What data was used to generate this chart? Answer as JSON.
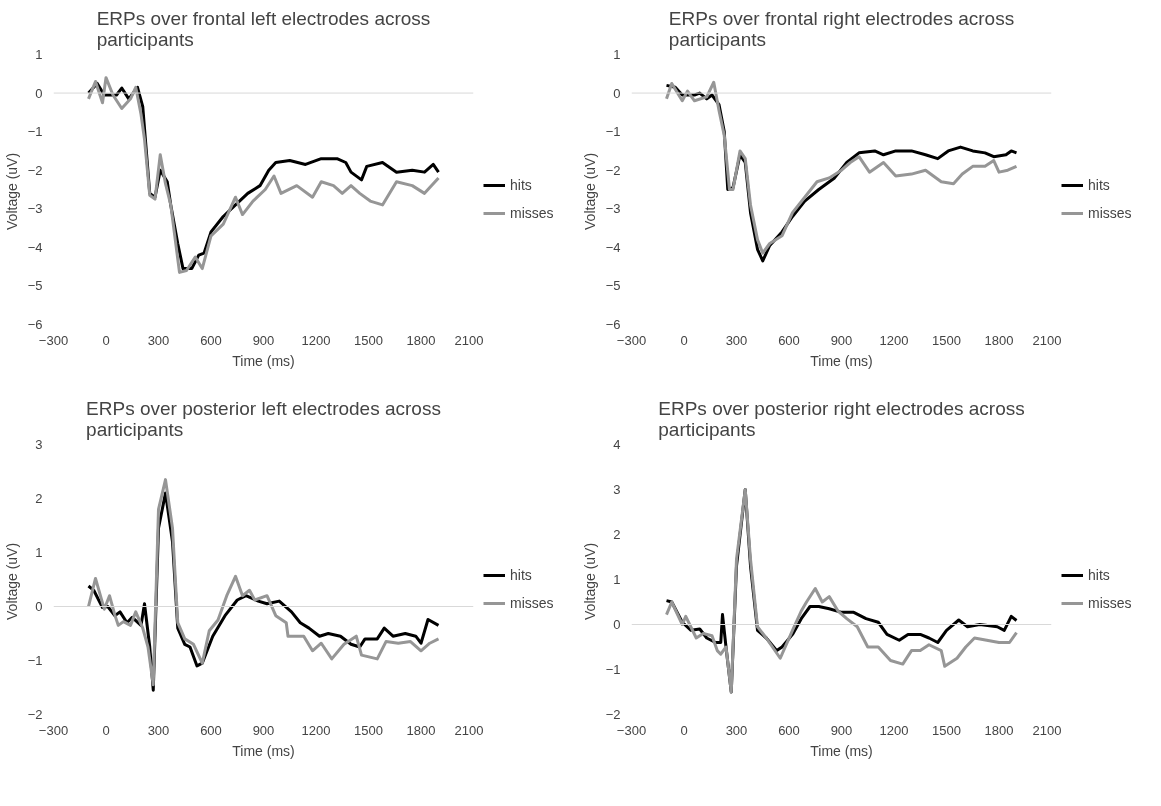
{
  "chart_data": [
    {
      "type": "line",
      "title": "ERPs over frontal left electrodes across participants",
      "xlabel": "Time (ms)",
      "ylabel": "Voltage  (uV)",
      "xlim": [
        -300,
        2100
      ],
      "xticks": [
        -300,
        0,
        300,
        600,
        900,
        1200,
        1500,
        1800,
        2100
      ],
      "ylim": [
        -6,
        1
      ],
      "yticks": [
        -6,
        -5,
        -4,
        -3,
        -2,
        -1,
        0,
        1
      ],
      "grid": false,
      "legend": "right",
      "ref_lines": [
        {
          "axis": "y",
          "value": 0,
          "color": "#d9d9d9"
        }
      ],
      "series": [
        {
          "name": "hits",
          "color": "#000000",
          "x": [
            -100,
            -50,
            -10,
            60,
            90,
            130,
            180,
            210,
            250,
            280,
            310,
            350,
            370,
            410,
            440,
            490,
            530,
            560,
            600,
            670,
            740,
            810,
            880,
            930,
            970,
            1050,
            1140,
            1230,
            1320,
            1370,
            1400,
            1460,
            1490,
            1580,
            1660,
            1750,
            1820,
            1870,
            1900
          ],
          "values": [
            0,
            0.25,
            -0.05,
            -0.05,
            0.13,
            -0.15,
            0.15,
            -0.35,
            -2.6,
            -2.7,
            -2.0,
            -2.3,
            -2.9,
            -3.9,
            -4.55,
            -4.55,
            -4.2,
            -4.15,
            -3.6,
            -3.2,
            -2.9,
            -2.6,
            -2.4,
            -2.0,
            -1.8,
            -1.75,
            -1.85,
            -1.7,
            -1.7,
            -1.8,
            -2.05,
            -2.25,
            -1.9,
            -1.8,
            -2.05,
            -2.0,
            -2.05,
            -1.85,
            -2.05
          ]
        },
        {
          "name": "misses",
          "color": "#969696",
          "x": [
            -100,
            -60,
            -20,
            0,
            40,
            90,
            140,
            170,
            200,
            220,
            250,
            280,
            310,
            340,
            370,
            420,
            460,
            510,
            550,
            600,
            670,
            740,
            780,
            840,
            910,
            960,
            1000,
            1090,
            1180,
            1230,
            1300,
            1350,
            1400,
            1450,
            1510,
            1580,
            1660,
            1750,
            1820,
            1900
          ],
          "values": [
            -0.15,
            0.3,
            -0.25,
            0.4,
            -0.05,
            -0.4,
            -0.15,
            0.15,
            -0.55,
            -1.2,
            -2.65,
            -2.75,
            -1.6,
            -2.35,
            -2.9,
            -4.65,
            -4.6,
            -4.25,
            -4.55,
            -3.7,
            -3.4,
            -2.7,
            -3.15,
            -2.8,
            -2.5,
            -2.15,
            -2.6,
            -2.4,
            -2.7,
            -2.3,
            -2.4,
            -2.6,
            -2.4,
            -2.6,
            -2.8,
            -2.9,
            -2.3,
            -2.4,
            -2.6,
            -2.2
          ]
        }
      ]
    },
    {
      "type": "line",
      "title": "ERPs over frontal right electrodes across participants",
      "xlabel": "Time (ms)",
      "ylabel": "Voltage  (uV)",
      "xlim": [
        -300,
        2100
      ],
      "xticks": [
        -300,
        0,
        300,
        600,
        900,
        1200,
        1500,
        1800,
        2100
      ],
      "ylim": [
        -6,
        1
      ],
      "yticks": [
        -6,
        -5,
        -4,
        -3,
        -2,
        -1,
        0,
        1
      ],
      "grid": false,
      "legend": "right",
      "ref_lines": [
        {
          "axis": "y",
          "value": 0,
          "color": "#d9d9d9"
        }
      ],
      "series": [
        {
          "name": "hits",
          "color": "#000000",
          "x": [
            -100,
            -50,
            -10,
            60,
            90,
            130,
            160,
            200,
            230,
            250,
            280,
            320,
            350,
            380,
            420,
            450,
            490,
            560,
            620,
            690,
            770,
            860,
            930,
            1000,
            1090,
            1140,
            1210,
            1300,
            1380,
            1450,
            1510,
            1580,
            1650,
            1720,
            1770,
            1840,
            1870,
            1900
          ],
          "values": [
            0.2,
            0.15,
            -0.05,
            -0.05,
            0,
            -0.15,
            -0.05,
            -0.3,
            -1.0,
            -2.5,
            -2.45,
            -1.6,
            -1.8,
            -3.1,
            -4.05,
            -4.35,
            -3.95,
            -3.6,
            -3.2,
            -2.8,
            -2.5,
            -2.2,
            -1.8,
            -1.55,
            -1.5,
            -1.6,
            -1.5,
            -1.5,
            -1.6,
            -1.7,
            -1.5,
            -1.4,
            -1.5,
            -1.55,
            -1.65,
            -1.6,
            -1.5,
            -1.55
          ]
        },
        {
          "name": "misses",
          "color": "#969696",
          "x": [
            -100,
            -70,
            -10,
            20,
            60,
            130,
            170,
            200,
            230,
            260,
            280,
            320,
            350,
            380,
            420,
            450,
            490,
            560,
            620,
            690,
            760,
            830,
            900,
            950,
            1000,
            1060,
            1140,
            1210,
            1300,
            1380,
            1470,
            1540,
            1590,
            1650,
            1720,
            1770,
            1800,
            1850,
            1900
          ],
          "values": [
            -0.15,
            0.25,
            -0.2,
            0.05,
            -0.2,
            -0.1,
            0.28,
            -0.45,
            -1.1,
            -2.5,
            -2.5,
            -1.5,
            -1.7,
            -2.9,
            -3.8,
            -4.15,
            -3.9,
            -3.7,
            -3.1,
            -2.7,
            -2.3,
            -2.2,
            -2.0,
            -1.8,
            -1.65,
            -2.05,
            -1.8,
            -2.15,
            -2.1,
            -2.0,
            -2.3,
            -2.35,
            -2.1,
            -1.9,
            -1.9,
            -1.75,
            -2.05,
            -2.0,
            -1.9
          ]
        }
      ]
    },
    {
      "type": "line",
      "title": "ERPs over posterior left electrodes across participants",
      "xlabel": "Time (ms)",
      "ylabel": "Voltage  (uV)",
      "xlim": [
        -300,
        2100
      ],
      "xticks": [
        -300,
        0,
        300,
        600,
        900,
        1200,
        1500,
        1800,
        2100
      ],
      "ylim": [
        -2,
        3
      ],
      "yticks": [
        -2,
        -1,
        0,
        1,
        2,
        3
      ],
      "grid": false,
      "legend": "right",
      "ref_lines": [
        {
          "axis": "y",
          "value": 0,
          "color": "#d9d9d9"
        }
      ],
      "series": [
        {
          "name": "hits",
          "color": "#000000",
          "x": [
            -100,
            -70,
            -20,
            10,
            50,
            80,
            120,
            150,
            200,
            220,
            250,
            270,
            300,
            340,
            380,
            410,
            450,
            480,
            520,
            550,
            610,
            680,
            750,
            800,
            870,
            920,
            990,
            1060,
            1110,
            1160,
            1220,
            1270,
            1340,
            1400,
            1450,
            1480,
            1550,
            1590,
            1640,
            1710,
            1770,
            1800,
            1840,
            1900
          ],
          "values": [
            0.38,
            0.3,
            -0.02,
            0,
            -0.17,
            -0.1,
            -0.3,
            -0.2,
            -0.35,
            0.05,
            -0.75,
            -1.55,
            1.45,
            2.1,
            1.2,
            -0.4,
            -0.7,
            -0.75,
            -1.1,
            -1.05,
            -0.55,
            -0.17,
            0.12,
            0.2,
            0.1,
            0.05,
            0.1,
            -0.1,
            -0.3,
            -0.4,
            -0.55,
            -0.5,
            -0.55,
            -0.7,
            -0.75,
            -0.6,
            -0.6,
            -0.4,
            -0.55,
            -0.5,
            -0.55,
            -0.68,
            -0.24,
            -0.35
          ]
        },
        {
          "name": "misses",
          "color": "#969696",
          "x": [
            -100,
            -60,
            -10,
            20,
            50,
            70,
            100,
            140,
            170,
            210,
            240,
            270,
            300,
            340,
            380,
            410,
            450,
            500,
            550,
            590,
            640,
            690,
            740,
            780,
            820,
            850,
            920,
            970,
            1030,
            1040,
            1130,
            1180,
            1230,
            1290,
            1360,
            1430,
            1460,
            1550,
            1600,
            1670,
            1740,
            1800,
            1850,
            1900
          ],
          "values": [
            0,
            0.52,
            -0.05,
            0.2,
            -0.15,
            -0.35,
            -0.28,
            -0.35,
            -0.1,
            -0.4,
            -0.75,
            -1.45,
            1.8,
            2.35,
            1.45,
            -0.3,
            -0.6,
            -0.7,
            -1.05,
            -0.45,
            -0.25,
            0.2,
            0.56,
            0.2,
            0.3,
            0.12,
            0.2,
            -0.17,
            -0.3,
            -0.55,
            -0.55,
            -0.82,
            -0.68,
            -0.97,
            -0.7,
            -0.55,
            -0.9,
            -0.97,
            -0.65,
            -0.68,
            -0.65,
            -0.82,
            -0.68,
            -0.6
          ]
        }
      ]
    },
    {
      "type": "line",
      "title": "ERPs over posterior right electrodes across participants",
      "xlabel": "Time (ms)",
      "ylabel": "Voltage  (uV)",
      "xlim": [
        -300,
        2100
      ],
      "xticks": [
        -300,
        0,
        300,
        600,
        900,
        1200,
        1500,
        1800,
        2100
      ],
      "ylim": [
        -2,
        4
      ],
      "yticks": [
        -2,
        -1,
        0,
        1,
        2,
        3,
        4
      ],
      "grid": false,
      "legend": "right",
      "ref_lines": [
        {
          "axis": "y",
          "value": 0,
          "color": "#d9d9d9"
        }
      ],
      "series": [
        {
          "name": "hits",
          "color": "#000000",
          "x": [
            -100,
            -70,
            -10,
            40,
            90,
            130,
            180,
            210,
            220,
            240,
            270,
            300,
            350,
            380,
            420,
            470,
            530,
            560,
            620,
            670,
            720,
            770,
            830,
            900,
            970,
            1040,
            1110,
            1160,
            1230,
            1280,
            1350,
            1400,
            1450,
            1500,
            1570,
            1620,
            1690,
            1790,
            1830,
            1870,
            1900
          ],
          "values": [
            0.53,
            0.5,
            0.05,
            -0.13,
            -0.1,
            -0.3,
            -0.4,
            -0.4,
            0.22,
            -0.5,
            -1.5,
            1.3,
            3.0,
            1.3,
            -0.13,
            -0.3,
            -0.58,
            -0.5,
            -0.22,
            0.13,
            0.4,
            0.4,
            0.35,
            0.27,
            0.27,
            0.13,
            0.05,
            -0.22,
            -0.35,
            -0.22,
            -0.22,
            -0.3,
            -0.4,
            -0.13,
            0.1,
            -0.05,
            0,
            -0.05,
            -0.13,
            0.18,
            0.09
          ]
        },
        {
          "name": "misses",
          "color": "#969696",
          "x": [
            -100,
            -70,
            -10,
            10,
            70,
            110,
            160,
            190,
            210,
            240,
            270,
            300,
            350,
            380,
            420,
            470,
            550,
            620,
            670,
            700,
            750,
            790,
            830,
            880,
            930,
            990,
            1050,
            1110,
            1180,
            1250,
            1300,
            1350,
            1400,
            1470,
            1490,
            1560,
            1610,
            1660,
            1730,
            1800,
            1860,
            1900
          ],
          "values": [
            0.22,
            0.5,
            0,
            0.18,
            -0.3,
            -0.2,
            -0.25,
            -0.58,
            -0.66,
            -0.5,
            -1.5,
            1.45,
            3.0,
            1.45,
            -0.05,
            -0.3,
            -0.75,
            -0.13,
            0.3,
            0.5,
            0.8,
            0.5,
            0.62,
            0.3,
            0.13,
            -0.05,
            -0.5,
            -0.5,
            -0.8,
            -0.88,
            -0.58,
            -0.58,
            -0.45,
            -0.58,
            -0.93,
            -0.75,
            -0.5,
            -0.3,
            -0.35,
            -0.4,
            -0.4,
            -0.18
          ]
        }
      ]
    }
  ]
}
